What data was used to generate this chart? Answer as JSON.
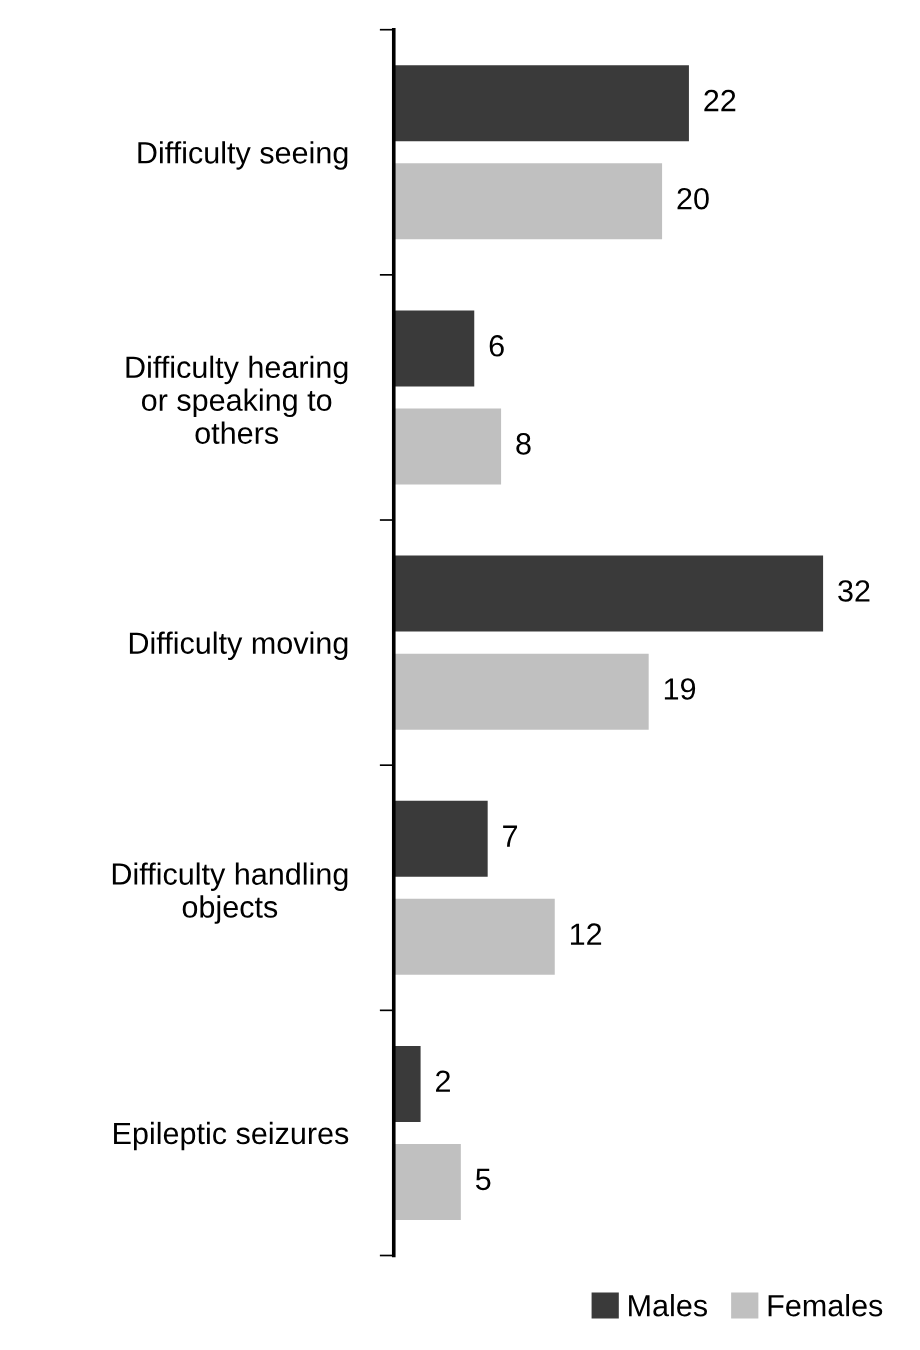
{
  "chart_data": {
    "type": "bar",
    "orientation": "horizontal",
    "categories": [
      "Difficulty seeing",
      "Difficulty hearing\nor speaking to\nothers",
      "Difficulty moving",
      "Difficulty handling\nobjects",
      "Epileptic seizures"
    ],
    "series": [
      {
        "name": "Males",
        "color": "#3a3a3a",
        "values": [
          22,
          6,
          32,
          7,
          2
        ]
      },
      {
        "name": "Females",
        "color": "#c0c0c0",
        "values": [
          20,
          8,
          19,
          12,
          5
        ]
      }
    ],
    "data_labels": true,
    "grid": false,
    "legend": "bottom right"
  }
}
